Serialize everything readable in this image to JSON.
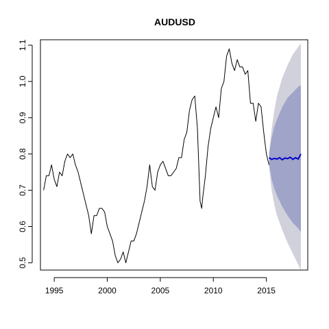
{
  "chart_data": {
    "type": "line",
    "title": "AUDUSD",
    "xlabel": "",
    "ylabel": "",
    "xlim": [
      1993.7,
      2018.9
    ],
    "ylim": [
      0.48,
      1.115
    ],
    "xticks": [
      1995,
      2000,
      2005,
      2010,
      2015
    ],
    "yticks": [
      0.5,
      0.6,
      0.7,
      0.8,
      0.9,
      1.0,
      1.1
    ],
    "ytick_labels": [
      "0.5",
      "0.6",
      "0.7",
      "0.8",
      "0.9",
      "1.0",
      "1.1"
    ],
    "grid": false,
    "series": [
      {
        "role": "history",
        "color": "#000000",
        "x": [
          1994.0,
          1994.25,
          1994.5,
          1994.75,
          1995.0,
          1995.25,
          1995.5,
          1995.75,
          1996.0,
          1996.25,
          1996.5,
          1996.75,
          1997.0,
          1997.25,
          1997.5,
          1997.75,
          1998.0,
          1998.25,
          1998.5,
          1998.75,
          1999.0,
          1999.25,
          1999.5,
          1999.75,
          2000.0,
          2000.25,
          2000.5,
          2000.75,
          2001.0,
          2001.25,
          2001.5,
          2001.75,
          2002.0,
          2002.25,
          2002.5,
          2002.75,
          2003.0,
          2003.25,
          2003.5,
          2003.75,
          2004.0,
          2004.25,
          2004.5,
          2004.75,
          2005.0,
          2005.25,
          2005.5,
          2005.75,
          2006.0,
          2006.25,
          2006.5,
          2006.75,
          2007.0,
          2007.25,
          2007.5,
          2007.75,
          2008.0,
          2008.25,
          2008.5,
          2008.75,
          2008.9,
          2009.0,
          2009.25,
          2009.5,
          2009.75,
          2010.0,
          2010.25,
          2010.5,
          2010.75,
          2011.0,
          2011.25,
          2011.5,
          2011.75,
          2012.0,
          2012.25,
          2012.5,
          2012.75,
          2013.0,
          2013.25,
          2013.5,
          2013.75,
          2014.0,
          2014.25,
          2014.5,
          2014.75,
          2015.0,
          2015.25
        ],
        "y": [
          0.7,
          0.74,
          0.74,
          0.77,
          0.73,
          0.71,
          0.75,
          0.74,
          0.78,
          0.8,
          0.79,
          0.8,
          0.77,
          0.75,
          0.72,
          0.69,
          0.66,
          0.63,
          0.58,
          0.63,
          0.63,
          0.65,
          0.65,
          0.64,
          0.6,
          0.58,
          0.56,
          0.52,
          0.5,
          0.51,
          0.53,
          0.5,
          0.53,
          0.56,
          0.56,
          0.58,
          0.61,
          0.64,
          0.67,
          0.71,
          0.77,
          0.71,
          0.7,
          0.75,
          0.77,
          0.78,
          0.76,
          0.74,
          0.74,
          0.75,
          0.76,
          0.79,
          0.79,
          0.84,
          0.86,
          0.92,
          0.95,
          0.96,
          0.87,
          0.67,
          0.65,
          0.68,
          0.74,
          0.82,
          0.87,
          0.9,
          0.93,
          0.9,
          0.98,
          1.0,
          1.07,
          1.09,
          1.05,
          1.03,
          1.06,
          1.04,
          1.04,
          1.02,
          1.03,
          0.94,
          0.94,
          0.89,
          0.94,
          0.93,
          0.86,
          0.8,
          0.77
        ]
      },
      {
        "role": "forecast",
        "color": "#0000cc",
        "x": [
          2015.25,
          2015.5,
          2015.75,
          2016.0,
          2016.25,
          2016.5,
          2016.75,
          2017.0,
          2017.25,
          2017.5,
          2017.75,
          2018.0,
          2018.25
        ],
        "y": [
          0.79,
          0.785,
          0.788,
          0.786,
          0.79,
          0.784,
          0.789,
          0.787,
          0.791,
          0.785,
          0.79,
          0.786,
          0.8
        ]
      }
    ],
    "intervals": [
      {
        "level": 95,
        "color": "#d1d1dc",
        "x": [
          2015.25,
          2015.5,
          2015.75,
          2016.0,
          2016.5,
          2017.0,
          2017.5,
          2018.0,
          2018.25
        ],
        "lower": [
          0.765,
          0.7,
          0.66,
          0.63,
          0.59,
          0.555,
          0.525,
          0.495,
          0.48
        ],
        "upper": [
          0.8,
          0.87,
          0.92,
          0.96,
          1.01,
          1.045,
          1.075,
          1.095,
          1.105
        ]
      },
      {
        "level": 80,
        "color": "#9fa4c8",
        "x": [
          2015.25,
          2015.5,
          2015.75,
          2016.0,
          2016.5,
          2017.0,
          2017.5,
          2018.0,
          2018.25
        ],
        "lower": [
          0.775,
          0.73,
          0.705,
          0.685,
          0.655,
          0.63,
          0.61,
          0.595,
          0.585
        ],
        "upper": [
          0.8,
          0.845,
          0.875,
          0.895,
          0.93,
          0.955,
          0.97,
          0.985,
          0.99
        ]
      }
    ]
  }
}
